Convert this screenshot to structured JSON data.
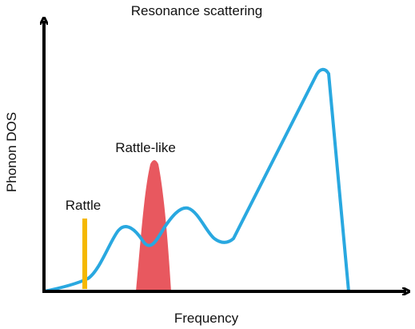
{
  "title": "Resonance scattering",
  "xlabel": "Frequency",
  "ylabel": "Phonon DOS",
  "annotations": {
    "rattle": "Rattle",
    "rattle_like": "Rattle-like"
  },
  "colors": {
    "dos_curve": "#29a8e0",
    "rattle_bar": "#f5b800",
    "rattle_like_peak": "#e8585f",
    "axes": "#000000"
  }
}
